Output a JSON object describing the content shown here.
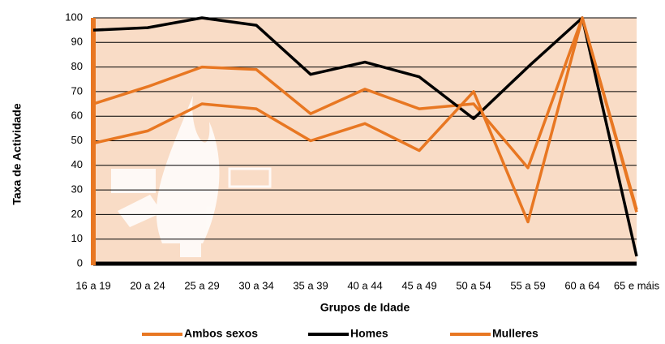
{
  "chart_data": {
    "type": "line",
    "categories": [
      "16 a 19",
      "20 a 24",
      "25 a 29",
      "30 a 34",
      "35 a 39",
      "40 a 44",
      "45 a 49",
      "50 a 54",
      "55 a 59",
      "60 a 64",
      "65 e máis"
    ],
    "series": [
      {
        "name": "Ambos sexos",
        "color": "#e87722",
        "values": [
          65,
          72,
          80,
          79,
          61,
          71,
          63,
          65,
          39,
          100,
          21
        ]
      },
      {
        "name": "Homes",
        "color": "#000000",
        "values": [
          95,
          96,
          100,
          97,
          77,
          82,
          76,
          59,
          80,
          100,
          3
        ]
      },
      {
        "name": "Mulleres",
        "color": "#e87722",
        "values": [
          49,
          54,
          65,
          63,
          50,
          57,
          46,
          70,
          17,
          100,
          22
        ]
      }
    ],
    "ylim": [
      0,
      100
    ],
    "yticks": [
      0,
      10,
      20,
      30,
      40,
      50,
      60,
      70,
      80,
      90,
      100
    ],
    "xlabel": "Grupos de Idade",
    "ylabel": "Taxa de Actividade",
    "grid": true
  }
}
